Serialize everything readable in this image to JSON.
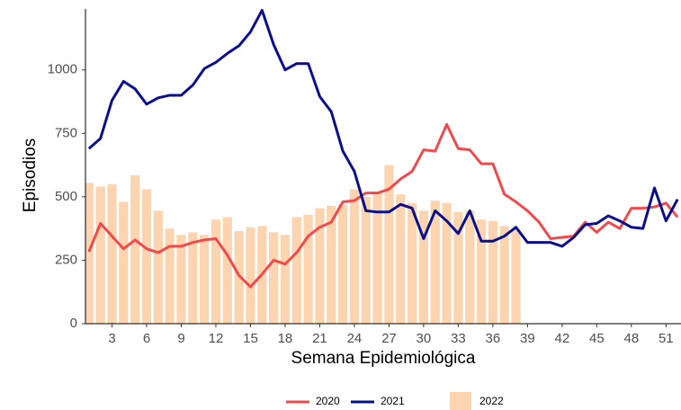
{
  "chart_data": {
    "type": "line",
    "x_label": "Semana Epidemiológica",
    "y_label": "Episodios",
    "x": [
      1,
      2,
      3,
      4,
      5,
      6,
      7,
      8,
      9,
      10,
      11,
      12,
      13,
      14,
      15,
      16,
      17,
      18,
      19,
      20,
      21,
      22,
      23,
      24,
      25,
      26,
      27,
      28,
      29,
      30,
      31,
      32,
      33,
      34,
      35,
      36,
      37,
      38,
      39,
      40,
      41,
      42,
      43,
      44,
      45,
      46,
      47,
      48,
      49,
      50,
      51,
      52
    ],
    "xlim": [
      0.7,
      52.3
    ],
    "xticks": [
      3,
      6,
      9,
      12,
      15,
      18,
      21,
      24,
      27,
      30,
      33,
      36,
      39,
      42,
      45,
      48,
      51
    ],
    "ylim": [
      0,
      1240
    ],
    "yticks": [
      0,
      250,
      500,
      750,
      1000
    ],
    "grid": false,
    "legend_position": "bottom",
    "series": [
      {
        "name": "2020",
        "type": "line",
        "color": "#f04a4a",
        "values": [
          283,
          395,
          345,
          295,
          330,
          295,
          280,
          305,
          305,
          320,
          330,
          335,
          270,
          190,
          145,
          195,
          250,
          235,
          280,
          345,
          380,
          400,
          480,
          485,
          515,
          515,
          530,
          570,
          600,
          685,
          680,
          785,
          690,
          685,
          630,
          630,
          510,
          480,
          445,
          400,
          335,
          340,
          345,
          400,
          360,
          400,
          375,
          455,
          455,
          460,
          475,
          420
        ]
      },
      {
        "name": "2021",
        "type": "line",
        "color": "#0a0f8c",
        "values": [
          690,
          730,
          880,
          955,
          925,
          865,
          890,
          900,
          900,
          940,
          1005,
          1030,
          1065,
          1095,
          1150,
          1235,
          1100,
          1000,
          1025,
          1025,
          895,
          835,
          680,
          600,
          445,
          440,
          440,
          470,
          455,
          335,
          445,
          405,
          355,
          445,
          325,
          325,
          345,
          380,
          320,
          320,
          320,
          305,
          340,
          390,
          395,
          425,
          405,
          380,
          375,
          535,
          405,
          490
        ]
      },
      {
        "name": "2022",
        "type": "bar",
        "color": "#fcd5b0",
        "values": [
          555,
          540,
          550,
          480,
          585,
          530,
          445,
          375,
          350,
          360,
          350,
          410,
          420,
          365,
          380,
          385,
          360,
          350,
          420,
          430,
          455,
          465,
          470,
          530,
          500,
          520,
          625,
          510,
          475,
          445,
          485,
          475,
          440,
          445,
          410,
          405,
          385,
          370,
          null,
          null,
          null,
          null,
          null,
          null,
          null,
          null,
          null,
          null,
          null,
          null,
          null,
          null
        ]
      }
    ]
  }
}
